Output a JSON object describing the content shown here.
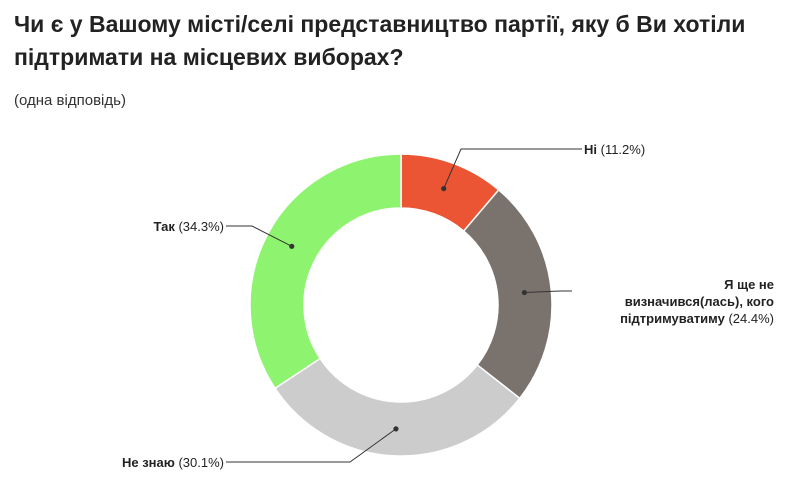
{
  "title": "Чи є у Вашому місті/селі представництво партії, яку б Ви хотіли підтримати на місцевих виборах?",
  "subtitle": "(одна відповідь)",
  "chart_data": {
    "type": "donut",
    "title": "Чи є у Вашому місті/селі представництво партії, яку б Ви хотіли підтримати на місцевих виборах?",
    "subtitle": "(одна відповідь)",
    "unit": "%",
    "slices": [
      {
        "label": "Ні",
        "value": 11.2,
        "value_text": "(11.2%)",
        "color": "#ec5533"
      },
      {
        "label": "Я ще не визначився(лась), кого підтримуватиму",
        "value": 24.4,
        "value_text": "(24.4%)",
        "color": "#7a726d"
      },
      {
        "label": "Не знаю",
        "value": 30.1,
        "value_text": "(30.1%)",
        "color": "#cccccc"
      },
      {
        "label": "Так",
        "value": 34.3,
        "value_text": "(34.3%)",
        "color": "#8ef46f"
      }
    ],
    "label_lines": {
      "Ні": [
        "Ні"
      ],
      "Я ще не визначився(лась), кого підтримуватиму": [
        "Я ще не",
        "визначився(лась), кого",
        "підтримуватиму"
      ],
      "Не знаю": [
        "Не знаю"
      ],
      "Так": [
        "Так"
      ]
    },
    "legend": "none"
  }
}
